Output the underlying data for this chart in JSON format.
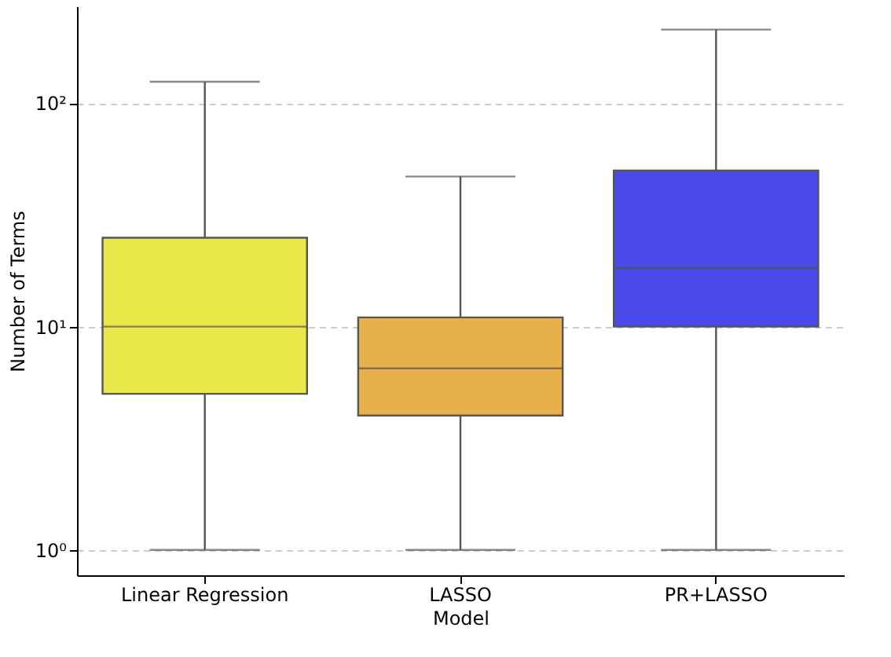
{
  "chart_data": {
    "type": "box",
    "xlabel": "Model",
    "ylabel": "Number of Terms",
    "categories": [
      "Linear Regression",
      "LASSO",
      "PR+LASSO"
    ],
    "colors": [
      "#e8e84a",
      "#e8b04a",
      "#4a4ae8"
    ],
    "boxes": [
      {
        "low": 1,
        "q1": 5,
        "median": 10,
        "q3": 25,
        "high": 125
      },
      {
        "low": 1,
        "q1": 4,
        "median": 6.5,
        "q3": 11,
        "high": 47
      },
      {
        "low": 1,
        "q1": 10,
        "median": 18.3,
        "q3": 50,
        "high": 214
      }
    ],
    "log": "y",
    "ylim": [
      0.77,
      272
    ],
    "yticks": [
      {
        "value": 1,
        "label": "10⁰"
      },
      {
        "value": 10,
        "label": "10¹"
      },
      {
        "value": 100,
        "label": "10²"
      }
    ],
    "grid": "y"
  }
}
